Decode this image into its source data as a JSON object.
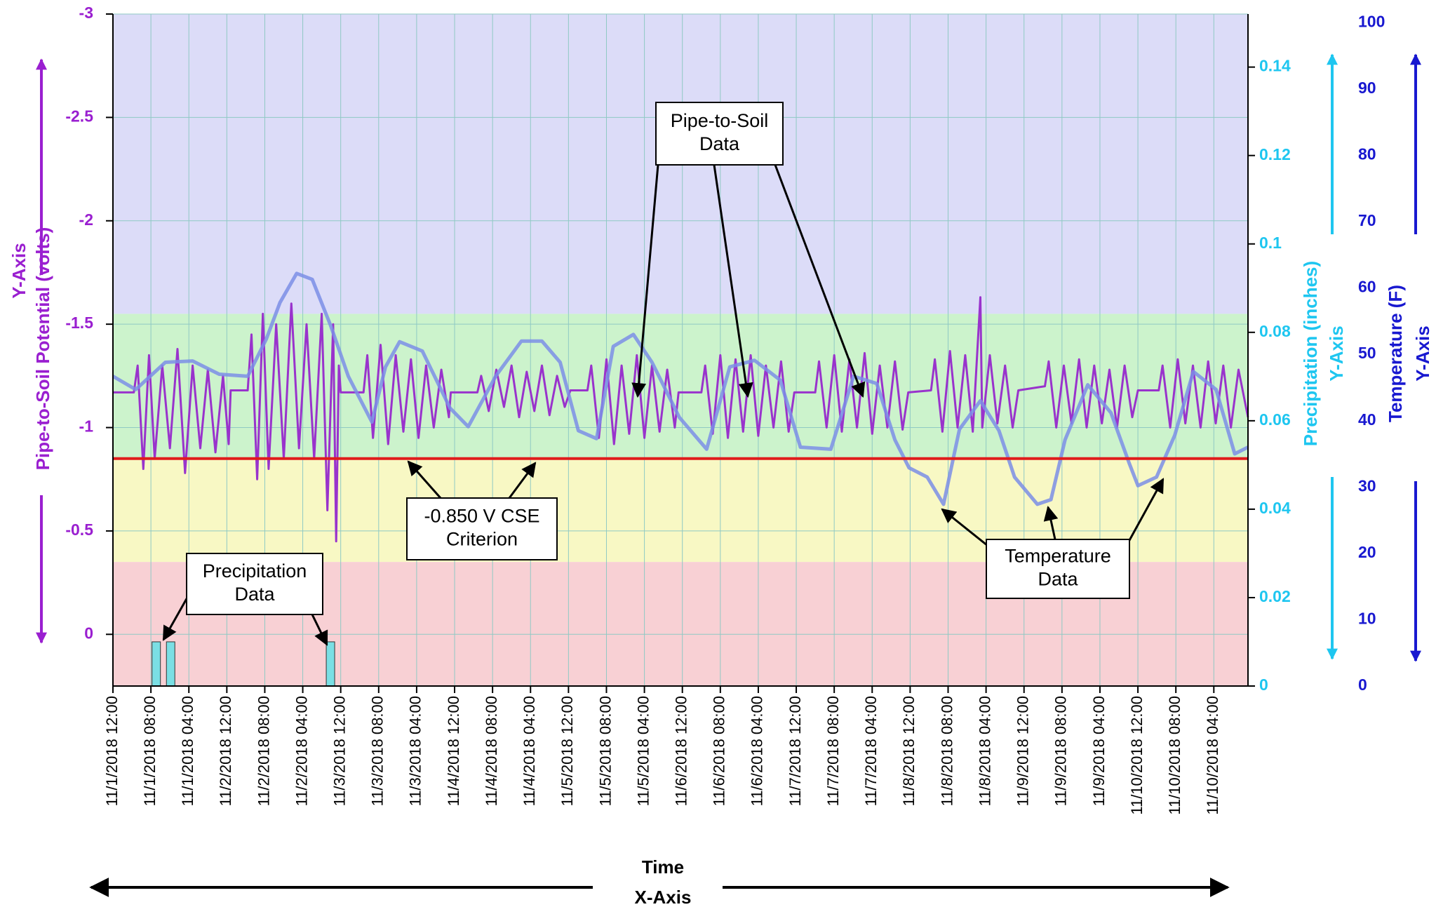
{
  "chart_data": {
    "type": "line",
    "categories": [
      "11/1/2018 12:00",
      "11/1/2018 08:00",
      "11/1/2018 04:00",
      "11/2/2018 12:00",
      "11/2/2018 08:00",
      "11/2/2018 04:00",
      "11/3/2018 12:00",
      "11/3/2018 08:00",
      "11/3/2018 04:00",
      "11/4/2018 12:00",
      "11/4/2018 08:00",
      "11/4/2018 04:00",
      "11/5/2018 12:00",
      "11/5/2018 08:00",
      "11/5/2018 04:00",
      "11/6/2018 12:00",
      "11/6/2018 08:00",
      "11/6/2018 04:00",
      "11/7/2018 12:00",
      "11/7/2018 08:00",
      "11/7/2018 04:00",
      "11/8/2018 12:00",
      "11/8/2018 08:00",
      "11/8/2018 04:00",
      "11/9/2018 12:00",
      "11/9/2018 08:00",
      "11/9/2018 04:00",
      "11/10/2018 12:00",
      "11/10/2018 08:00",
      "11/10/2018 04:00"
    ],
    "xlim": [
      0,
      29.9
    ],
    "x_label": "Time",
    "x_axis_note": "X-Axis",
    "y_label": "Pipe-to-Soil Potential (volts)",
    "y_axis_note": "Y-Axis",
    "y_color": "#9a1fd0",
    "ylim": [
      0.25,
      -3
    ],
    "yticks": [
      0,
      -0.5,
      -1,
      -1.5,
      -2,
      -2.5,
      -3
    ],
    "y2_label": "Precipitation (inches)",
    "y2_axis_note": "Y-Axis",
    "y2_color": "#1ec6f0",
    "y2lim": [
      0,
      0.152
    ],
    "y2ticks": [
      0,
      0.02,
      0.04,
      0.06,
      0.08,
      0.1,
      0.12,
      0.14
    ],
    "y3_label": "Temperature (F)",
    "y3_axis_note": "Y-Axis",
    "y3_color": "#1818d0",
    "y3lim": [
      0,
      101.3
    ],
    "y3ticks": [
      0,
      10,
      20,
      30,
      40,
      50,
      60,
      70,
      80,
      90,
      100
    ],
    "grid": true,
    "zones": [
      {
        "from": -3,
        "to": -1.55,
        "color": "#dcdcf8"
      },
      {
        "from": -1.55,
        "to": -0.85,
        "color": "#ccf3cc"
      },
      {
        "from": -0.85,
        "to": -0.35,
        "color": "#f8f8c4"
      },
      {
        "from": -0.35,
        "to": 0.25,
        "color": "#f8d0d4"
      }
    ],
    "criterion_line": {
      "value": -0.85,
      "color": "#e01c1c"
    },
    "series": [
      {
        "type": "line",
        "axis": "y",
        "color": "#9933cc",
        "x": [
          0,
          0.55,
          0.65,
          0.8,
          0.95,
          1.1,
          1.3,
          1.5,
          1.7,
          1.9,
          2.1,
          2.3,
          2.5,
          2.7,
          2.9,
          3.05,
          3.1,
          3.55,
          3.65,
          3.8,
          3.95,
          4.1,
          4.3,
          4.5,
          4.7,
          4.9,
          5.1,
          5.3,
          5.5,
          5.65,
          5.8,
          5.88,
          5.95,
          6.0,
          6.6,
          6.7,
          6.85,
          7.05,
          7.25,
          7.45,
          7.65,
          7.85,
          8.05,
          8.25,
          8.45,
          8.65,
          8.85,
          8.9,
          9.6,
          9.7,
          9.9,
          10.1,
          10.3,
          10.5,
          10.7,
          10.9,
          11.1,
          11.3,
          11.5,
          11.7,
          11.9,
          12.05,
          12.5,
          12.6,
          12.8,
          13.0,
          13.2,
          13.4,
          13.6,
          13.8,
          14.0,
          14.2,
          14.4,
          14.6,
          14.8,
          14.9,
          15.5,
          15.6,
          15.8,
          16.0,
          16.2,
          16.4,
          16.6,
          16.8,
          17.0,
          17.2,
          17.4,
          17.6,
          17.8,
          17.95,
          18.5,
          18.6,
          18.8,
          19.0,
          19.2,
          19.4,
          19.6,
          19.8,
          20.0,
          20.2,
          20.4,
          20.6,
          20.8,
          20.95,
          21.55,
          21.65,
          21.85,
          22.05,
          22.25,
          22.45,
          22.65,
          22.85,
          22.9,
          23.1,
          23.3,
          23.5,
          23.7,
          23.85,
          24.55,
          24.65,
          24.85,
          25.05,
          25.25,
          25.45,
          25.65,
          25.85,
          26.05,
          26.25,
          26.45,
          26.65,
          26.85,
          27.0,
          27.55,
          27.65,
          27.85,
          28.05,
          28.25,
          28.45,
          28.65,
          28.85,
          29.05,
          29.25,
          29.45,
          29.65,
          29.9
        ],
        "values": [
          -1.17,
          -1.17,
          -1.3,
          -0.8,
          -1.35,
          -0.85,
          -1.3,
          -0.9,
          -1.38,
          -0.78,
          -1.3,
          -0.9,
          -1.28,
          -0.88,
          -1.25,
          -0.92,
          -1.18,
          -1.18,
          -1.45,
          -0.75,
          -1.55,
          -0.8,
          -1.5,
          -0.85,
          -1.6,
          -0.9,
          -1.5,
          -0.85,
          -1.55,
          -0.6,
          -1.5,
          -0.45,
          -1.3,
          -1.17,
          -1.17,
          -1.35,
          -0.95,
          -1.4,
          -0.92,
          -1.35,
          -0.98,
          -1.33,
          -0.95,
          -1.3,
          -1.0,
          -1.28,
          -1.05,
          -1.17,
          -1.17,
          -1.25,
          -1.08,
          -1.28,
          -1.1,
          -1.3,
          -1.05,
          -1.27,
          -1.08,
          -1.3,
          -1.06,
          -1.25,
          -1.1,
          -1.18,
          -1.18,
          -1.3,
          -0.95,
          -1.33,
          -0.92,
          -1.3,
          -0.97,
          -1.35,
          -0.95,
          -1.3,
          -0.98,
          -1.28,
          -1.0,
          -1.17,
          -1.17,
          -1.3,
          -0.97,
          -1.35,
          -0.95,
          -1.33,
          -0.98,
          -1.35,
          -0.96,
          -1.3,
          -1.0,
          -1.32,
          -0.98,
          -1.17,
          -1.17,
          -1.32,
          -1.0,
          -1.35,
          -0.98,
          -1.33,
          -1.0,
          -1.36,
          -0.97,
          -1.3,
          -1.0,
          -1.32,
          -0.99,
          -1.17,
          -1.18,
          -1.33,
          -0.98,
          -1.37,
          -1.0,
          -1.35,
          -0.98,
          -1.63,
          -1.0,
          -1.35,
          -1.02,
          -1.3,
          -1.0,
          -1.18,
          -1.2,
          -1.32,
          -1.0,
          -1.3,
          -1.02,
          -1.33,
          -1.0,
          -1.3,
          -1.02,
          -1.28,
          -1.0,
          -1.3,
          -1.05,
          -1.18,
          -1.18,
          -1.3,
          -1.0,
          -1.33,
          -1.02,
          -1.3,
          -1.0,
          -1.32,
          -1.02,
          -1.3,
          -1.0,
          -1.28,
          -1.05
        ]
      },
      {
        "type": "line",
        "axis": "y3",
        "color": "#7b8ee6",
        "x": [
          0,
          0.6,
          1.38,
          2.1,
          2.8,
          3.55,
          4.04,
          4.4,
          4.84,
          5.25,
          5.73,
          6.2,
          6.82,
          7.18,
          7.55,
          8.15,
          8.88,
          9.36,
          10.08,
          10.76,
          11.3,
          11.78,
          12.26,
          12.74,
          13.18,
          13.71,
          14.2,
          14.92,
          15.64,
          16.25,
          16.9,
          17.58,
          18.11,
          18.91,
          19.51,
          20.12,
          20.6,
          20.97,
          21.45,
          21.88,
          22.3,
          22.85,
          23.34,
          23.75,
          24.35,
          24.71,
          25.08,
          25.68,
          26.29,
          26.77,
          27.0,
          27.49,
          27.97,
          28.46,
          29.06,
          29.55,
          29.9
        ],
        "values": [
          46.7,
          44.7,
          48.8,
          49,
          47,
          46.7,
          52.3,
          57.8,
          62.2,
          61.3,
          54.4,
          46.7,
          39.8,
          48.1,
          51.9,
          50.5,
          41.9,
          39.1,
          46.7,
          52,
          52,
          48.8,
          38.5,
          37.3,
          51.2,
          53,
          48.8,
          40.5,
          35.7,
          48.1,
          49.1,
          46.1,
          36,
          35.7,
          46.7,
          45.6,
          37.1,
          32.9,
          31.5,
          27.4,
          38.7,
          43,
          38.5,
          31.5,
          27.4,
          28.1,
          37.1,
          45.4,
          41.2,
          33.6,
          30.2,
          31.5,
          37.8,
          47.4,
          44.7,
          35,
          36
        ]
      },
      {
        "type": "bar",
        "axis": "y2",
        "color": "#7adfe4",
        "x": [
          1.14,
          1.52,
          5.73
        ],
        "values": [
          0.01,
          0.01,
          0.01
        ]
      }
    ],
    "annotations": [
      {
        "lines": [
          "Pipe-to-Soil",
          "Data"
        ]
      },
      {
        "lines": [
          "-0.850 V CSE",
          "Criterion"
        ]
      },
      {
        "lines": [
          "Precipitation",
          "Data"
        ]
      },
      {
        "lines": [
          "Temperature",
          "Data"
        ]
      }
    ]
  }
}
